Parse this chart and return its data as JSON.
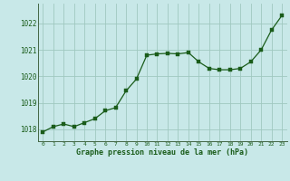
{
  "x": [
    0,
    1,
    2,
    3,
    4,
    5,
    6,
    7,
    8,
    9,
    10,
    11,
    12,
    13,
    14,
    15,
    16,
    17,
    18,
    19,
    20,
    21,
    22,
    23
  ],
  "y": [
    1017.9,
    1018.1,
    1018.2,
    1018.1,
    1018.25,
    1018.4,
    1018.7,
    1018.82,
    1019.45,
    1019.9,
    1020.8,
    1020.85,
    1020.87,
    1020.85,
    1020.9,
    1020.55,
    1020.3,
    1020.25,
    1020.25,
    1020.3,
    1020.55,
    1021.0,
    1021.75,
    1022.3
  ],
  "line_color": "#1a5c1a",
  "marker_color": "#1a5c1a",
  "bg_color": "#c8e8e8",
  "grid_color": "#a0c8c0",
  "xlabel": "Graphe pression niveau de la mer (hPa)",
  "xlabel_color": "#1a5c1a",
  "tick_color": "#1a5c1a",
  "ylim": [
    1017.55,
    1022.75
  ],
  "yticks": [
    1018,
    1019,
    1020,
    1021,
    1022
  ],
  "xlim": [
    -0.5,
    23.5
  ],
  "xticks": [
    0,
    1,
    2,
    3,
    4,
    5,
    6,
    7,
    8,
    9,
    10,
    11,
    12,
    13,
    14,
    15,
    16,
    17,
    18,
    19,
    20,
    21,
    22,
    23
  ]
}
